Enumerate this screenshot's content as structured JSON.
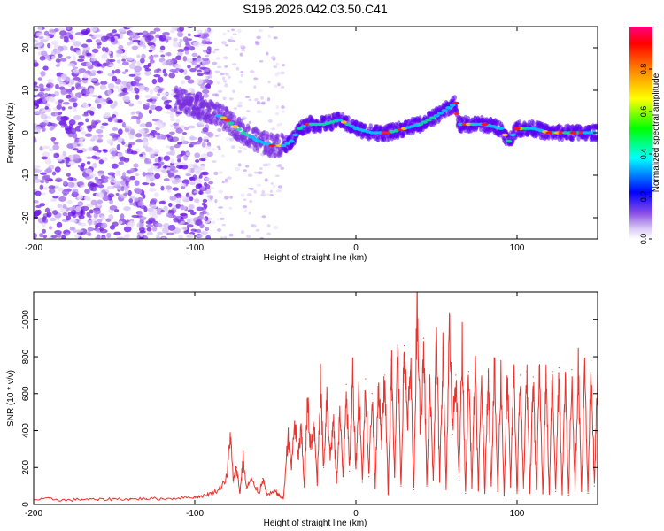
{
  "title": "S196.2026.042.03.50.C41",
  "chart_data": [
    {
      "type": "heatmap",
      "name": "spectrogram",
      "xlabel": "Height of straight line (km)",
      "ylabel": "Frequency (Hz)",
      "xlim": [
        -200,
        150
      ],
      "ylim": [
        -25,
        25
      ],
      "xticks": [
        -200,
        -100,
        0,
        100
      ],
      "xtick_labels": [
        "-200",
        "-100",
        "0",
        "100"
      ],
      "yticks": [
        -20,
        -10,
        0,
        10,
        20
      ],
      "ytick_labels": [
        "-20",
        "-10",
        "0",
        "10",
        "20"
      ],
      "ridge": {
        "x": [
          -110,
          -100,
          -90,
          -80,
          -70,
          -60,
          -52,
          -45,
          -40,
          -35,
          -30,
          -20,
          -10,
          0,
          10,
          20,
          30,
          40,
          50,
          58,
          62,
          63,
          70,
          80,
          90,
          95,
          100,
          110,
          120,
          130,
          140,
          150
        ],
        "y": [
          8,
          6,
          5,
          3,
          0,
          -2,
          -3,
          -3,
          -2,
          1,
          2,
          2,
          3,
          1,
          0,
          0,
          1,
          2,
          4,
          6,
          7,
          2,
          2,
          2,
          1,
          -2,
          1,
          1,
          0,
          0,
          0,
          0
        ]
      },
      "colorbar": {
        "label": "Normalized spectral amplitude",
        "range": [
          0,
          1
        ],
        "ticks": [
          0.0,
          0.2,
          0.4,
          0.6,
          0.8
        ],
        "tick_labels": [
          "0.0",
          "0.2",
          "0.4",
          "0.6",
          "0.8"
        ],
        "colors": [
          "#ffffff",
          "#d9c8f5",
          "#8c50e6",
          "#6a00ff",
          "#0000ff",
          "#00ffff",
          "#00ff00",
          "#ffff00",
          "#ff8000",
          "#ff0000",
          "#ff00ff"
        ]
      }
    },
    {
      "type": "line",
      "name": "snr",
      "xlabel": "Height of straight line (km)",
      "ylabel": "SNR (10 * v/v)",
      "xlim": [
        -200,
        150
      ],
      "ylim": [
        0,
        1150
      ],
      "xticks": [
        -200,
        -100,
        0,
        100
      ],
      "xtick_labels": [
        "-200",
        "-100",
        "0",
        "100"
      ],
      "yticks": [
        0,
        200,
        400,
        600,
        800,
        1000
      ],
      "ytick_labels": [
        "0",
        "200",
        "400",
        "600",
        "800",
        "1000"
      ],
      "color": "#e8332e",
      "series": [
        {
          "name": "SNR",
          "x": [
            -200,
            -190,
            -180,
            -170,
            -160,
            -150,
            -140,
            -130,
            -120,
            -110,
            -100,
            -95,
            -90,
            -85,
            -80,
            -78,
            -76,
            -74,
            -72,
            -70,
            -68,
            -65,
            -60,
            -58,
            -55,
            -50,
            -48,
            -45,
            -42,
            -40,
            -38,
            -36,
            -34,
            -32,
            -30,
            -28,
            -26,
            -24,
            -22,
            -20,
            -18,
            -16,
            -14,
            -12,
            -10,
            -8,
            -6,
            -4,
            -2,
            0,
            2,
            4,
            6,
            8,
            10,
            12,
            14,
            16,
            18,
            20,
            22,
            24,
            26,
            28,
            30,
            32,
            34,
            36,
            38,
            40,
            42,
            44,
            46,
            48,
            50,
            52,
            54,
            56,
            58,
            60,
            62,
            64,
            66,
            68,
            70,
            72,
            74,
            76,
            78,
            80,
            82,
            84,
            86,
            88,
            90,
            92,
            94,
            96,
            98,
            100,
            102,
            104,
            106,
            108,
            110,
            112,
            114,
            116,
            118,
            120,
            122,
            124,
            126,
            128,
            130,
            132,
            134,
            136,
            138,
            140,
            142,
            144,
            146,
            148,
            150
          ],
          "y": [
            25,
            30,
            22,
            28,
            25,
            30,
            28,
            32,
            30,
            35,
            40,
            45,
            60,
            80,
            150,
            380,
            120,
            200,
            60,
            250,
            90,
            130,
            60,
            140,
            50,
            70,
            50,
            30,
            380,
            200,
            450,
            250,
            400,
            100,
            550,
            300,
            420,
            120,
            660,
            200,
            600,
            250,
            450,
            120,
            500,
            150,
            650,
            180,
            700,
            200,
            640,
            120,
            680,
            150,
            600,
            100,
            650,
            350,
            700,
            60,
            780,
            150,
            820,
            100,
            860,
            420,
            750,
            80,
            1150,
            380,
            900,
            100,
            680,
            140,
            920,
            120,
            850,
            80,
            940,
            380,
            700,
            150,
            860,
            60,
            720,
            100,
            760,
            80,
            680,
            60,
            720,
            100,
            740,
            70,
            700,
            50,
            680,
            100,
            740,
            60,
            700,
            90,
            720,
            60,
            690,
            80,
            710,
            60,
            700,
            55,
            720,
            70,
            740,
            60,
            700,
            50,
            730,
            80,
            760,
            70,
            720,
            60,
            780,
            100,
            720
          ]
        }
      ]
    }
  ]
}
